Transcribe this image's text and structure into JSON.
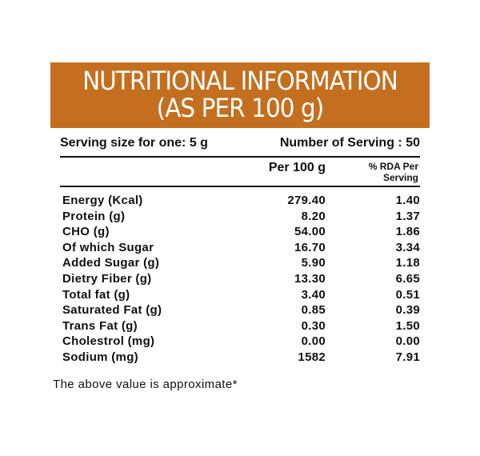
{
  "banner": {
    "title_line1": "NUTRITIONAL INFORMATION",
    "title_line2": "(AS PER 100 g)",
    "background_color": "#c46f1f"
  },
  "serving": {
    "size_text": "Serving size for one: 5 g",
    "count_text": "Number of Serving : 50"
  },
  "columns": {
    "per100": "Per 100 g",
    "rda_line1": "% RDA Per",
    "rda_line2": "Serving"
  },
  "rows": [
    {
      "label": "Energy (Kcal)",
      "per100": "279.40",
      "rda": "1.40"
    },
    {
      "label": "Protein (g)",
      "per100": "8.20",
      "rda": "1.37"
    },
    {
      "label": "CHO (g)",
      "per100": "54.00",
      "rda": "1.86"
    },
    {
      "label": "Of which Sugar",
      "per100": "16.70",
      "rda": "3.34"
    },
    {
      "label": "Added Sugar (g)",
      "per100": "5.90",
      "rda": "1.18"
    },
    {
      "label": "Dietry Fiber (g)",
      "per100": "13.30",
      "rda": "6.65"
    },
    {
      "label": "Total fat (g)",
      "per100": "3.40",
      "rda": "0.51"
    },
    {
      "label": "Saturated Fat (g)",
      "per100": "0.85",
      "rda": "0.39"
    },
    {
      "label": "Trans Fat (g)",
      "per100": "0.30",
      "rda": "1.50"
    },
    {
      "label": "Cholestrol (mg)",
      "per100": "0.00",
      "rda": "0.00"
    },
    {
      "label": "Sodium (mg)",
      "per100": "1582",
      "rda": "7.91"
    }
  ],
  "footnote": "The above value is approximate*"
}
